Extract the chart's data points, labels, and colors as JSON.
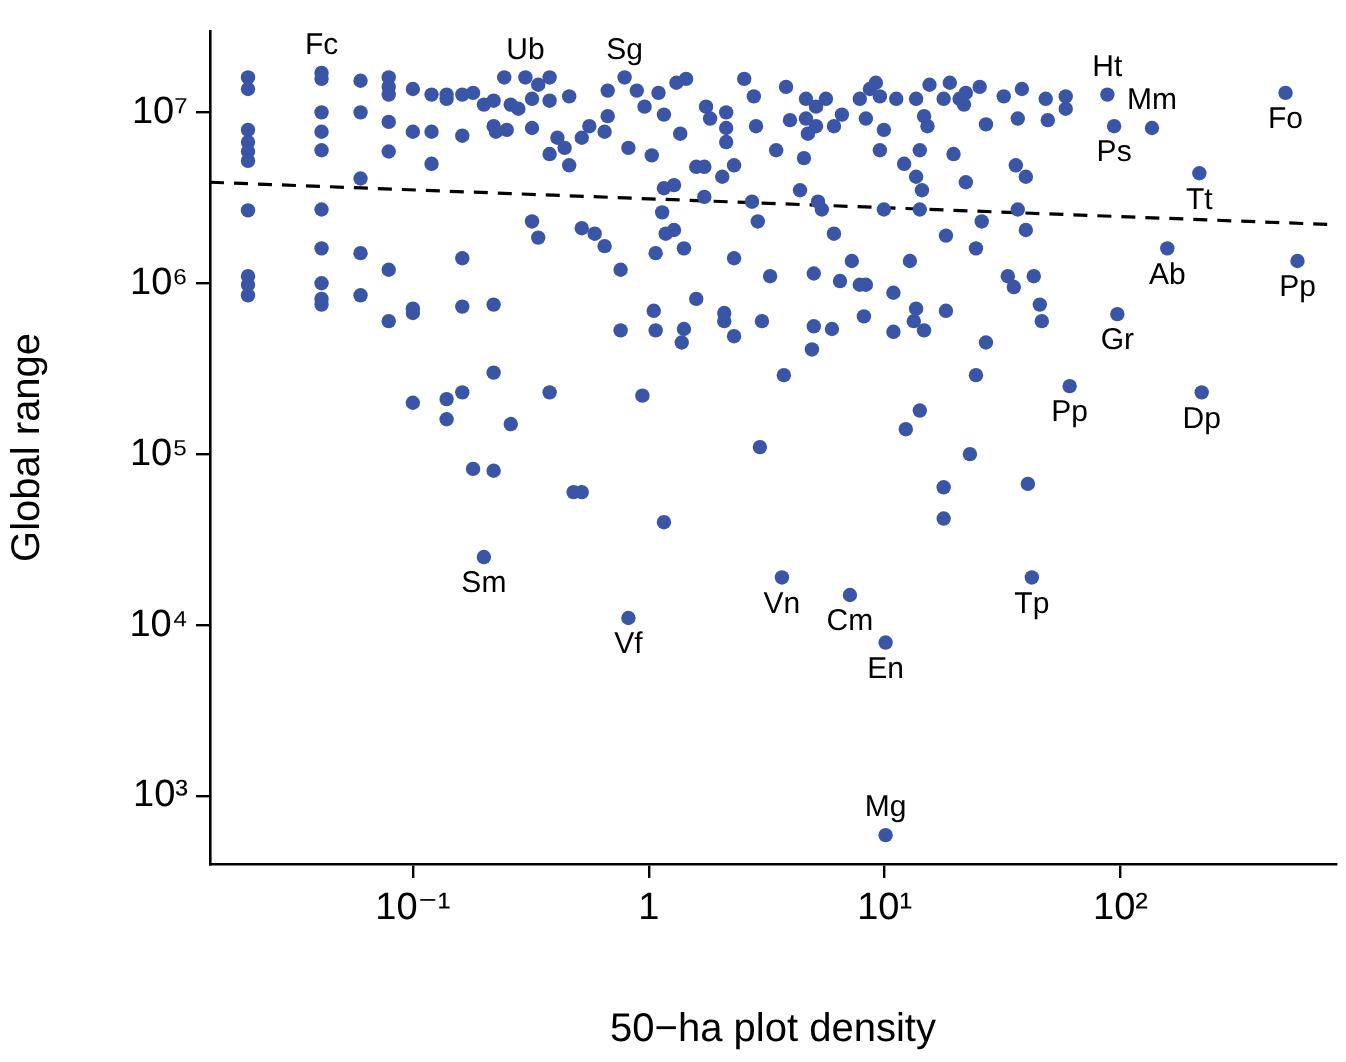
{
  "chart_data": {
    "type": "scatter",
    "xlabel": "50−ha plot density",
    "ylabel": "Global range",
    "log": "xy",
    "marker": "circle",
    "xlim": [
      0.0138,
      820
    ],
    "ylim": [
      400,
      30000000
    ],
    "xticks": [
      {
        "value": 0.1,
        "label": "10⁻¹"
      },
      1,
      {
        "value": 10,
        "label": "10¹"
      },
      {
        "value": 100,
        "label": "10²"
      }
    ],
    "yticks": [
      {
        "value": 1000,
        "label": "10³"
      },
      {
        "value": 10000,
        "label": "10⁴"
      },
      {
        "value": 100000,
        "label": "10⁵"
      },
      {
        "value": 1000000,
        "label": "10⁶"
      },
      {
        "value": 10000000,
        "label": "10⁷"
      }
    ],
    "series": [
      {
        "type": "scatter",
        "color": "#3a55a6",
        "x": [
          0.02,
          0.02,
          0.02,
          0.02,
          0.02,
          0.02,
          0.02,
          0.02,
          0.02,
          0.02,
          0.041,
          0.041,
          0.041,
          0.041,
          0.041,
          0.041,
          0.041,
          0.041,
          0.041,
          0.041,
          0.06,
          0.06,
          0.06,
          0.06,
          0.06,
          0.079,
          0.079,
          0.079,
          0.079,
          0.079,
          0.079,
          0.079,
          0.1,
          0.1,
          0.1,
          0.1,
          0.1,
          0.12,
          0.12,
          0.12,
          0.139,
          0.139,
          0.139,
          0.139,
          0.162,
          0.162,
          0.162,
          0.162,
          0.162,
          0.18,
          0.18,
          0.2,
          0.2,
          0.22,
          0.22,
          0.22,
          0.22,
          0.22,
          0.225,
          0.244,
          0.25,
          0.26,
          0.26,
          0.28,
          0.3,
          0.32,
          0.32,
          0.32,
          0.34,
          0.34,
          0.38,
          0.38,
          0.38,
          0.38,
          0.41,
          0.44,
          0.46,
          0.46,
          0.48,
          0.52,
          0.52,
          0.52,
          0.56,
          0.59,
          0.65,
          0.65,
          0.67,
          0.67,
          0.76,
          0.76,
          0.79,
          0.82,
          0.82,
          0.89,
          0.94,
          0.96,
          1.03,
          1.05,
          1.07,
          1.07,
          1.1,
          1.14,
          1.16,
          1.16,
          1.16,
          1.18,
          1.28,
          1.28,
          1.31,
          1.36,
          1.38,
          1.41,
          1.41,
          1.44,
          1.59,
          1.59,
          1.72,
          1.72,
          1.75,
          1.82,
          2.05,
          2.09,
          2.09,
          2.13,
          2.13,
          2.13,
          2.3,
          2.3,
          2.3,
          2.54,
          2.74,
          2.79,
          2.85,
          2.9,
          2.96,
          3.02,
          3.27,
          3.47,
          3.74,
          3.67,
          3.82,
          3.97,
          4.38,
          4.55,
          4.64,
          4.64,
          4.73,
          4.92,
          5.01,
          5.01,
          5.12,
          5.12,
          5.22,
          5.42,
          5.64,
          5.98,
          6.1,
          6.1,
          6.47,
          6.59,
          7.13,
          7.26,
          7.85,
          7.85,
          8.17,
          8.33,
          8.33,
          8.66,
          9.18,
          9.55,
          9.55,
          9.93,
          9.93,
          10.1,
          10.1,
          10.9,
          10.9,
          11.2,
          12.1,
          12.3,
          12.8,
          13.3,
          13.6,
          13.6,
          13.6,
          14.1,
          14.1,
          14.1,
          14.4,
          14.7,
          14.7,
          15.2,
          15.5,
          17.8,
          17.8,
          17.8,
          18.2,
          18.2,
          18.9,
          19.6,
          20.8,
          21.7,
          22.1,
          22.1,
          23,
          24.4,
          24.4,
          25.3,
          25.8,
          26.9,
          26.9,
          32,
          33.3,
          35.3,
          36,
          36.7,
          36.7,
          38.2,
          39.7,
          39.7,
          40.5,
          42.1,
          42.9,
          45.5,
          46.4,
          48.2,
          49.2,
          58.6,
          58.6,
          60.9,
          88,
          94,
          97,
          136,
          158,
          216,
          221,
          501,
          563
        ],
        "values": [
          16000000,
          13700000,
          7900000,
          6700000,
          5900000,
          5200000,
          2670000,
          1100000,
          980000,
          850000,
          17000000,
          15700000,
          10000000,
          7700000,
          6000000,
          2700000,
          1600000,
          1000000,
          810000,
          750000,
          15300000,
          10000000,
          4100000,
          1500000,
          850000,
          16000000,
          14100000,
          12700000,
          8800000,
          5900000,
          1200000,
          600000,
          13700000,
          7700000,
          710000,
          670000,
          200000,
          12700000,
          7700000,
          5000000,
          12700000,
          12000000,
          210000,
          160000,
          12700000,
          7300000,
          1400000,
          730000,
          230000,
          13000000,
          82000,
          11100000,
          25000,
          11700000,
          8300000,
          750000,
          300000,
          80000,
          7700000,
          16000000,
          7900000,
          11100000,
          150000,
          10500000,
          16000000,
          12000000,
          8100000,
          2300000,
          14500000,
          1850000,
          16000000,
          11700000,
          5700000,
          230000,
          7100000,
          6200000,
          12400000,
          4900000,
          60000,
          7100000,
          2100000,
          60000,
          8300000,
          1950000,
          7700000,
          1650000,
          13400000,
          9500000,
          1200000,
          530000,
          16000000,
          6200000,
          11000,
          13400000,
          220000,
          10800000,
          5600000,
          690000,
          1500000,
          530000,
          13000000,
          2600000,
          9700000,
          3600000,
          40000,
          1950000,
          3750000,
          2050000,
          14900000,
          7500000,
          450000,
          1600000,
          540000,
          15700000,
          4800000,
          810000,
          4800000,
          3200000,
          10800000,
          9200000,
          4200000,
          670000,
          600000,
          10000000,
          8100000,
          6700000,
          4900000,
          1400000,
          490000,
          15700000,
          3000000,
          12400000,
          8300000,
          2300000,
          110000,
          600000,
          1100000,
          6000000,
          290000,
          19000,
          14100000,
          9000000,
          3500000,
          5400000,
          12000000,
          9200000,
          7500000,
          410000,
          1140000,
          560000,
          10800000,
          8300000,
          3000000,
          2700000,
          12000000,
          540000,
          8300000,
          1950000,
          1030000,
          9700000,
          15000,
          1350000,
          12000000,
          980000,
          640000,
          9200000,
          980000,
          13700000,
          14900000,
          12400000,
          6000000,
          7900000,
          2700000,
          7900,
          590,
          880000,
          520000,
          12000000,
          5000000,
          140000,
          1350000,
          600000,
          12000000,
          4200000,
          710000,
          6000000,
          2700000,
          180000,
          3500000,
          9500000,
          530000,
          8300000,
          14500000,
          12000000,
          64000,
          42000,
          1900000,
          690000,
          14900000,
          5700000,
          12000000,
          11100000,
          13000000,
          3900000,
          100000,
          1600000,
          290000,
          14100000,
          2300000,
          8500000,
          450000,
          12400000,
          1100000,
          950000,
          4900000,
          9200000,
          2700000,
          13700000,
          4200000,
          2050000,
          67000,
          19000,
          1100000,
          750000,
          600000,
          12000000,
          9000000,
          12400000,
          10500000,
          250000,
          12700000,
          8300000,
          660000,
          8100000,
          1600000,
          4400000,
          230000,
          13000000,
          1350000
        ]
      },
      {
        "type": "line",
        "color": "#000000",
        "line_style": "dashed",
        "marker": "none",
        "x": [
          0.0138,
          820
        ],
        "values": [
          3900000,
          2200000
        ]
      }
    ],
    "annotations": [
      {
        "text": "Fc",
        "x": 0.041,
        "y": 17000000
      },
      {
        "text": "Ub",
        "x": 0.3,
        "y": 16000000
      },
      {
        "text": "Sg",
        "x": 0.79,
        "y": 16000000
      },
      {
        "text": "Ht",
        "x": 88,
        "y": 12700000
      },
      {
        "text": "Ps",
        "x": 94,
        "y": 8300000
      },
      {
        "text": "Mm",
        "x": 136,
        "y": 8100000
      },
      {
        "text": "Fo",
        "x": 501,
        "y": 13000000
      },
      {
        "text": "Tt",
        "x": 216,
        "y": 4400000
      },
      {
        "text": "Ab",
        "x": 158,
        "y": 1600000
      },
      {
        "text": "Pp",
        "x": 563,
        "y": 1350000
      },
      {
        "text": "Gr",
        "x": 97,
        "y": 660000
      },
      {
        "text": "Pp",
        "x": 60.9,
        "y": 250000
      },
      {
        "text": "Dp",
        "x": 221,
        "y": 230000
      },
      {
        "text": "Sm",
        "x": 0.2,
        "y": 25000
      },
      {
        "text": "Vf",
        "x": 0.82,
        "y": 11000
      },
      {
        "text": "Vn",
        "x": 3.67,
        "y": 19000
      },
      {
        "text": "Cm",
        "x": 7.13,
        "y": 15000
      },
      {
        "text": "En",
        "x": 10.1,
        "y": 7900
      },
      {
        "text": "Tp",
        "x": 42.1,
        "y": 19000
      },
      {
        "text": "Mg",
        "x": 10.1,
        "y": 590
      }
    ]
  }
}
